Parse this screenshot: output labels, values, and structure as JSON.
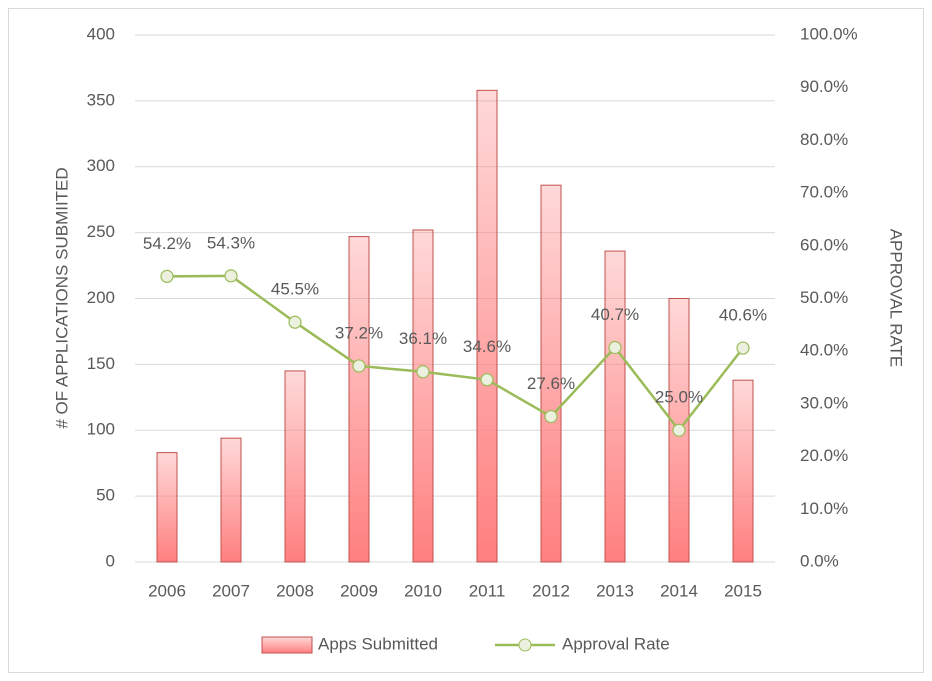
{
  "chart_data": {
    "type": "bar",
    "categories": [
      "2006",
      "2007",
      "2008",
      "2009",
      "2010",
      "2011",
      "2012",
      "2013",
      "2014",
      "2015"
    ],
    "series": [
      {
        "name": "Apps Submitted",
        "type": "bar",
        "color": "#ff7f7f",
        "edge_color": "#c0504d",
        "values": [
          83,
          94,
          145,
          247,
          252,
          358,
          286,
          236,
          200,
          138
        ]
      },
      {
        "name": "Approval Rate",
        "type": "line",
        "axis": "y2",
        "color": "#9bbb59",
        "marker_fill": "#ebf1de",
        "values": [
          54.2,
          54.3,
          45.5,
          37.2,
          36.1,
          34.6,
          27.6,
          40.7,
          25.0,
          40.6
        ],
        "value_labels": [
          "54.2%",
          "54.3%",
          "45.5%",
          "37.2%",
          "36.1%",
          "34.6%",
          "27.6%",
          "40.7%",
          "25.0%",
          "40.6%"
        ]
      }
    ],
    "ylabel": "# OF APPLICATIONS SUBMIITED",
    "y2label": "APPROVAL RATE",
    "ylim": [
      0,
      400
    ],
    "yticks": [
      0,
      50,
      100,
      150,
      200,
      250,
      300,
      350,
      400
    ],
    "y2lim": [
      0,
      100
    ],
    "y2ticks": [
      {
        "value": 0,
        "label": "0.0%"
      },
      {
        "value": 10,
        "label": "10.0%"
      },
      {
        "value": 20,
        "label": "20.0%"
      },
      {
        "value": 30,
        "label": "30.0%"
      },
      {
        "value": 40,
        "label": "40.0%"
      },
      {
        "value": 50,
        "label": "50.0%"
      },
      {
        "value": 60,
        "label": "60.0%"
      },
      {
        "value": 70,
        "label": "70.0%"
      },
      {
        "value": 80,
        "label": "80.0%"
      },
      {
        "value": 90,
        "label": "90.0%"
      },
      {
        "value": 100,
        "label": "100.0%"
      }
    ],
    "grid": true,
    "legend": "bottom"
  }
}
